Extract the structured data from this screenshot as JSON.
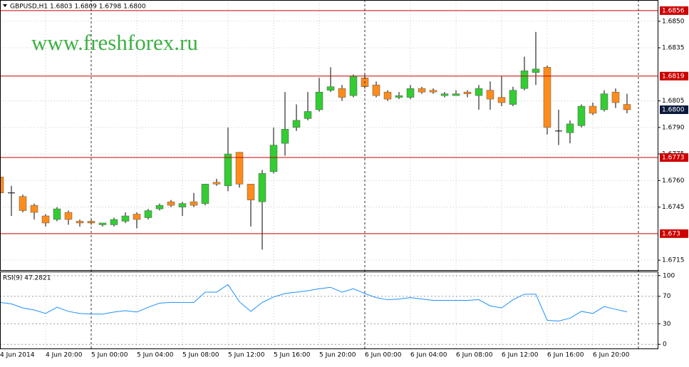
{
  "chart_data": [
    {
      "type": "candlestick",
      "title": "GBPUSD,H1 1.6803 1.6809 1.6798 1.6800",
      "watermark": "www.freshforex.ru",
      "categories": [
        "4 Jun 2014",
        null,
        null,
        null,
        "4 Jun 20:00",
        null,
        null,
        null,
        "5 Jun 00:00",
        null,
        null,
        null,
        "5 Jun 04:00",
        null,
        null,
        null,
        "5 Jun 08:00",
        null,
        null,
        null,
        "5 Jun 12:00",
        null,
        null,
        null,
        "5 Jun 16:00",
        null,
        null,
        null,
        "5 Jun 20:00",
        null,
        null,
        null,
        "6 Jun 00:00",
        null,
        null,
        null,
        "6 Jun 04:00",
        null,
        null,
        null,
        "6 Jun 08:00",
        null,
        null,
        null,
        "6 Jun 12:00",
        null,
        null,
        null,
        "6 Jun 16:00",
        null,
        null,
        null,
        "6 Jun 20:00",
        null,
        null,
        null
      ],
      "open": [
        1.6762,
        1.6753,
        1.6751,
        1.6746,
        1.674,
        1.6738,
        1.6742,
        1.6737,
        1.6737,
        1.6735,
        1.6735,
        1.6737,
        1.6741,
        1.6739,
        1.6744,
        1.6748,
        1.6745,
        1.6748,
        1.6747,
        1.6759,
        1.6757,
        1.6776,
        1.6758,
        1.6748,
        1.6765,
        1.6781,
        1.679,
        1.6795,
        1.68,
        1.6811,
        1.6812,
        1.6808,
        1.6818,
        1.6814,
        1.681,
        1.6807,
        1.6807,
        1.6812,
        1.6811,
        1.6808,
        1.6808,
        1.681,
        1.6808,
        1.6811,
        1.6807,
        1.6803,
        1.6812,
        1.6821,
        1.6824,
        1.6788,
        1.6787,
        1.6791,
        1.6802,
        1.68,
        1.681,
        1.6803
      ],
      "high": [
        1.6764,
        1.6757,
        1.6752,
        1.6747,
        1.6741,
        1.6745,
        1.6743,
        1.6738,
        1.6738,
        1.6736,
        1.6739,
        1.6742,
        1.6742,
        1.6744,
        1.6747,
        1.6749,
        1.6748,
        1.6753,
        1.6758,
        1.6761,
        1.679,
        1.6776,
        1.6758,
        1.6766,
        1.679,
        1.681,
        1.6803,
        1.681,
        1.6818,
        1.6824,
        1.6814,
        1.682,
        1.682,
        1.6816,
        1.6811,
        1.681,
        1.6814,
        1.6813,
        1.6812,
        1.681,
        1.6811,
        1.6811,
        1.6814,
        1.6816,
        1.6819,
        1.6813,
        1.683,
        1.6844,
        1.6825,
        1.68,
        1.6794,
        1.6803,
        1.6804,
        1.6811,
        1.6812,
        1.6809
      ],
      "low": [
        1.6746,
        1.674,
        1.6742,
        1.6738,
        1.6734,
        1.6737,
        1.6735,
        1.6734,
        1.6735,
        1.6734,
        1.6734,
        1.6736,
        1.6733,
        1.6738,
        1.6743,
        1.6745,
        1.674,
        1.6745,
        1.6746,
        1.6757,
        1.6754,
        1.6756,
        1.6734,
        1.6721,
        1.6764,
        1.6774,
        1.6788,
        1.6794,
        1.6799,
        1.681,
        1.6805,
        1.6807,
        1.6812,
        1.6807,
        1.6805,
        1.6806,
        1.6806,
        1.6809,
        1.6809,
        1.6807,
        1.6808,
        1.6807,
        1.68,
        1.68,
        1.6802,
        1.6802,
        1.6811,
        1.6814,
        1.6786,
        1.678,
        1.6781,
        1.679,
        1.6797,
        1.6799,
        1.6801,
        1.6798
      ],
      "close": [
        1.6753,
        1.6753,
        1.6743,
        1.6742,
        1.6736,
        1.6744,
        1.6738,
        1.6736,
        1.6736,
        1.6736,
        1.6738,
        1.674,
        1.6738,
        1.6743,
        1.6746,
        1.6746,
        1.6747,
        1.6746,
        1.6758,
        1.6758,
        1.6775,
        1.6758,
        1.6749,
        1.6764,
        1.678,
        1.6789,
        1.6794,
        1.6799,
        1.681,
        1.6813,
        1.6807,
        1.6819,
        1.6813,
        1.6808,
        1.6806,
        1.6808,
        1.6812,
        1.681,
        1.681,
        1.6809,
        1.6809,
        1.6809,
        1.6812,
        1.6806,
        1.6804,
        1.6811,
        1.6822,
        1.6823,
        1.679,
        1.6788,
        1.6792,
        1.6802,
        1.6798,
        1.6809,
        1.6804,
        1.68
      ],
      "up_color": "#33cc33",
      "down_color": "#ff8c1a",
      "ylim": [
        1.6709,
        1.6862
      ],
      "yticks": [
        {
          "value": 1.685,
          "label": "1.6850"
        },
        1.6835,
        1.6805,
        {
          "value": 1.679,
          "label": "1.6790"
        },
        1.6775,
        {
          "value": 1.676,
          "label": "1.6760"
        },
        1.6745,
        1.6715
      ],
      "levels": [
        1.6856,
        1.6819,
        1.6773,
        1.673
      ],
      "level_color": "#cc0000",
      "current_price": {
        "value": 1.68,
        "label": "1.6800"
      },
      "grid": true
    },
    {
      "type": "line",
      "title": "RSI(9) 47.2821",
      "series": [
        {
          "color": "#1e90ff",
          "values": [
            61,
            59,
            53,
            50,
            45,
            54,
            48,
            45,
            44,
            44,
            47,
            49,
            47,
            54,
            60,
            61,
            61,
            61,
            76,
            76,
            87,
            62,
            48,
            61,
            69,
            74,
            76,
            78,
            81,
            83,
            76,
            81,
            74,
            68,
            65,
            66,
            68,
            66,
            64,
            64,
            64,
            64,
            65,
            56,
            53,
            65,
            73,
            73,
            35,
            34,
            38,
            48,
            45,
            55,
            51,
            47.2821
          ]
        }
      ],
      "ylim": [
        -6,
        105
      ],
      "yticks": [
        0,
        30,
        70,
        100
      ],
      "grid": true
    }
  ]
}
